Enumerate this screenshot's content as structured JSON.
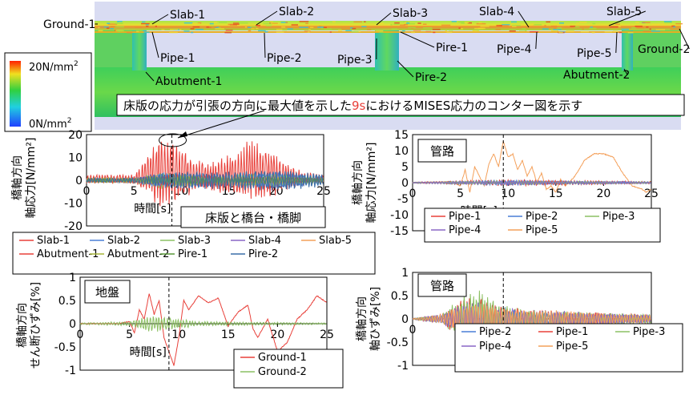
{
  "colors": {
    "contour_low": "#1e50ff",
    "contour_mid": "#22cc33",
    "contour_high": "#ff2a00",
    "slab": "#e8403a",
    "slab2": "#4a7fd6",
    "slab3": "#8cc063",
    "slab4": "#8a67c6",
    "slab5": "#f4a05a",
    "abut1": "#e8403a",
    "abut2": "#a7b63a",
    "pire1": "#5a9a3a",
    "pire2": "#3a6ea8",
    "pipe1": "#e8403a",
    "pipe2": "#4a7fd6",
    "pipe3": "#8cc063",
    "pipe4": "#8a67c6",
    "pipe5": "#f4a05a",
    "ground1": "#e8403a",
    "ground2": "#8cc063",
    "caption_accent": "#e8403a"
  },
  "contour": {
    "labels": [
      "Slab-1",
      "Slab-2",
      "Slab-3",
      "Slab-4",
      "Slab-5",
      "Ground-1",
      "Ground-2",
      "Pipe-1",
      "Pipe-2",
      "Pipe-3",
      "Pire-1",
      "Pipe-4",
      "Pipe-5",
      "Abutment-1",
      "Pire-2",
      "Abutment-2"
    ],
    "colorbar_top": "20N/mm",
    "colorbar_bottom": "0N/mm",
    "superscript": "2",
    "caption_pre": "床版の応力が引張の方向に最大値を示した",
    "caption_highlight": "9s",
    "caption_post": "におけるMISES応力のコンター図を示す"
  },
  "chart_data": [
    {
      "id": "slab",
      "type": "line",
      "xlabel": "時間[s]",
      "ylabel": "橋軸方向\n軸応力[N/mm²]",
      "xlim": [
        0,
        25
      ],
      "ylim": [
        -20,
        20
      ],
      "xticks": [
        0,
        5,
        10,
        15,
        20,
        25
      ],
      "yticks": [
        -20,
        -10,
        0,
        10,
        20
      ],
      "title_box": "床版と橋台・橋脚",
      "event_time": 9,
      "legend": [
        "Slab-1",
        "Slab-2",
        "Slab-3",
        "Slab-4",
        "Slab-5",
        "Abutment-1",
        "Abutment-2",
        "Pire-1",
        "Pire-2"
      ],
      "series": [
        {
          "name": "Slab-1",
          "color_key": "slab",
          "amp": 17,
          "env": "burst",
          "seed": 1,
          "envelope_points": [
            [
              5,
              2
            ],
            [
              6.5,
              10
            ],
            [
              8,
              17
            ],
            [
              9.5,
              16
            ],
            [
              11,
              8
            ],
            [
              13,
              6
            ],
            [
              15,
              9
            ],
            [
              17,
              14
            ],
            [
              19,
              13
            ],
            [
              21,
              6
            ],
            [
              23,
              3
            ],
            [
              25,
              2
            ]
          ]
        },
        {
          "name": "Slab-2",
          "color_key": "slab2",
          "amp": 4,
          "seed": 2,
          "envelope_points": [
            [
              5,
              1
            ],
            [
              8,
              4
            ],
            [
              11,
              3
            ],
            [
              15,
              3
            ],
            [
              20,
              4
            ],
            [
              25,
              2
            ]
          ]
        },
        {
          "name": "Slab-3",
          "color_key": "slab3",
          "amp": 3,
          "seed": 3,
          "envelope_points": [
            [
              5,
              1
            ],
            [
              8,
              4
            ],
            [
              12,
              2
            ],
            [
              18,
              3
            ],
            [
              25,
              2
            ]
          ]
        },
        {
          "name": "Slab-4",
          "color_key": "slab4",
          "amp": 2,
          "seed": 4,
          "envelope_points": [
            [
              5,
              1
            ],
            [
              9,
              3
            ],
            [
              15,
              2
            ],
            [
              25,
              1
            ]
          ]
        },
        {
          "name": "Slab-5",
          "color_key": "slab5",
          "amp": 3,
          "seed": 5,
          "envelope_points": [
            [
              5,
              1
            ],
            [
              9,
              3
            ],
            [
              15,
              2
            ],
            [
              25,
              1
            ]
          ]
        },
        {
          "name": "Abutment-1",
          "color_key": "abut1",
          "amp": 3,
          "seed": 6,
          "envelope_points": [
            [
              5,
              1
            ],
            [
              9,
              3
            ],
            [
              15,
              2
            ],
            [
              25,
              1
            ]
          ]
        },
        {
          "name": "Abutment-2",
          "color_key": "abut2",
          "amp": 2,
          "seed": 7,
          "envelope_points": [
            [
              5,
              1
            ],
            [
              9,
              2
            ],
            [
              25,
              1
            ]
          ]
        },
        {
          "name": "Pire-1",
          "color_key": "pire1",
          "amp": 2,
          "seed": 8,
          "envelope_points": [
            [
              5,
              1
            ],
            [
              9,
              2
            ],
            [
              25,
              1
            ]
          ]
        },
        {
          "name": "Pire-2",
          "color_key": "pire2",
          "amp": 3,
          "seed": 9,
          "envelope_points": [
            [
              5,
              1
            ],
            [
              9,
              4
            ],
            [
              15,
              4
            ],
            [
              20,
              5
            ],
            [
              25,
              3
            ]
          ]
        }
      ]
    },
    {
      "id": "pipe_stress",
      "type": "line",
      "xlabel": "時間[s]",
      "ylabel": "橋軸方向\n軸応力[N/mm²]",
      "xlim": [
        0,
        25
      ],
      "ylim": [
        -15,
        15
      ],
      "xticks": [
        0,
        5,
        10,
        15,
        20,
        25
      ],
      "yticks": [
        -15,
        -10,
        -5,
        0,
        5,
        10,
        15
      ],
      "title_box": "管路",
      "event_time": 9.5,
      "legend": [
        "Pipe-1",
        "Pipe-2",
        "Pipe-3",
        "Pipe-4",
        "Pipe-5"
      ],
      "series": [
        {
          "name": "Pipe-5",
          "color_key": "pipe5",
          "seed": 11,
          "points": [
            [
              0,
              0
            ],
            [
              4,
              0.3
            ],
            [
              5,
              -1
            ],
            [
              5.5,
              4
            ],
            [
              6,
              -3
            ],
            [
              6.5,
              5
            ],
            [
              7,
              2
            ],
            [
              7.5,
              -1
            ],
            [
              8,
              6
            ],
            [
              8.5,
              9
            ],
            [
              9,
              5
            ],
            [
              9.5,
              13
            ],
            [
              10,
              8
            ],
            [
              10.5,
              9
            ],
            [
              11,
              4
            ],
            [
              11.5,
              7
            ],
            [
              12,
              2
            ],
            [
              12.5,
              5
            ],
            [
              13,
              0
            ],
            [
              13.5,
              3
            ],
            [
              14,
              -2
            ],
            [
              14.5,
              -1
            ],
            [
              15,
              -3
            ],
            [
              15.5,
              1
            ],
            [
              16,
              -1
            ],
            [
              17,
              2
            ],
            [
              18,
              7
            ],
            [
              19,
              9
            ],
            [
              20,
              9
            ],
            [
              21,
              8
            ],
            [
              22,
              3
            ],
            [
              23,
              -1
            ],
            [
              24,
              -2
            ],
            [
              24.5,
              -3
            ],
            [
              25,
              -2
            ]
          ]
        },
        {
          "name": "Pipe-1",
          "color_key": "pipe1",
          "amp": 0.8,
          "seed": 12,
          "envelope_points": [
            [
              0,
              0.2
            ],
            [
              9,
              1
            ],
            [
              25,
              0.4
            ]
          ]
        },
        {
          "name": "Pipe-2",
          "color_key": "pipe2",
          "amp": 0.6,
          "seed": 13,
          "envelope_points": [
            [
              0,
              0.2
            ],
            [
              9,
              0.8
            ],
            [
              25,
              0.3
            ]
          ]
        },
        {
          "name": "Pipe-3",
          "color_key": "pipe3",
          "amp": 0.5,
          "seed": 14,
          "envelope_points": [
            [
              0,
              0.2
            ],
            [
              9,
              0.6
            ],
            [
              25,
              0.3
            ]
          ]
        },
        {
          "name": "Pipe-4",
          "color_key": "pipe4",
          "amp": 0.5,
          "seed": 15,
          "envelope_points": [
            [
              0,
              0.2
            ],
            [
              9,
              0.6
            ],
            [
              25,
              0.3
            ]
          ]
        }
      ]
    },
    {
      "id": "ground",
      "type": "line",
      "xlabel": "時間[s]",
      "ylabel": "橋軸方向\nせん断ひずみ[%]",
      "xlim": [
        0,
        25
      ],
      "ylim": [
        -1,
        1
      ],
      "xticks": [
        0,
        5,
        10,
        15,
        20,
        25
      ],
      "yticks": [
        -1,
        -0.5,
        0,
        0.5,
        1
      ],
      "title_box": "地盤",
      "event_time": 9,
      "legend": [
        "Ground-1",
        "Ground-2"
      ],
      "series": [
        {
          "name": "Ground-1",
          "color_key": "ground1",
          "points": [
            [
              0,
              0
            ],
            [
              4,
              0
            ],
            [
              5,
              0.05
            ],
            [
              5.5,
              -0.2
            ],
            [
              6,
              0.3
            ],
            [
              6.5,
              0.1
            ],
            [
              7,
              0.65
            ],
            [
              7.5,
              0.2
            ],
            [
              8,
              0.5
            ],
            [
              8.5,
              -0.3
            ],
            [
              9,
              -0.6
            ],
            [
              9.5,
              -0.9
            ],
            [
              10,
              -0.3
            ],
            [
              10.5,
              0.5
            ],
            [
              11,
              0.3
            ],
            [
              12,
              0.6
            ],
            [
              13,
              0.45
            ],
            [
              14,
              0.55
            ],
            [
              15,
              -0.05
            ],
            [
              16,
              0.25
            ],
            [
              17,
              0.4
            ],
            [
              17.5,
              -0.1
            ],
            [
              18,
              -0.3
            ],
            [
              19,
              0.1
            ],
            [
              20,
              -0.6
            ],
            [
              21,
              -0.4
            ],
            [
              22,
              0.1
            ],
            [
              23,
              0.3
            ],
            [
              24,
              0.6
            ],
            [
              25,
              0.45
            ]
          ]
        },
        {
          "name": "Ground-2",
          "color_key": "ground2",
          "amp": 0.12,
          "seed": 21,
          "envelope_points": [
            [
              0,
              0.02
            ],
            [
              5,
              0.05
            ],
            [
              7,
              0.2
            ],
            [
              9,
              0.15
            ],
            [
              12,
              0.05
            ],
            [
              25,
              0.02
            ]
          ]
        }
      ]
    },
    {
      "id": "pipe_strain",
      "type": "line",
      "xlabel": "時間[s]",
      "ylabel": "橋軸方向\n軸ひずみ[%]",
      "xlim": [
        0,
        25
      ],
      "ylim": [
        -1,
        1
      ],
      "xticks": [
        0,
        5,
        10,
        15,
        20,
        25
      ],
      "yticks": [
        -1,
        -0.5,
        0,
        0.5,
        1
      ],
      "title_box": "管路",
      "event_time": 9.5,
      "legend": [
        "Pipe-2",
        "Pipe-1",
        "Pipe-3",
        "Pipe-4",
        "Pipe-5"
      ],
      "series": [
        {
          "name": "Pipe-1",
          "color_key": "pipe1",
          "amp": 0.35,
          "seed": 31,
          "envelope_points": [
            [
              0,
              0.01
            ],
            [
              3,
              0.1
            ],
            [
              5,
              0.4
            ],
            [
              7,
              0.5
            ],
            [
              9,
              0.3
            ],
            [
              12,
              0.2
            ],
            [
              25,
              0.1
            ]
          ]
        },
        {
          "name": "Pipe-2",
          "color_key": "pipe2",
          "amp": 0.3,
          "seed": 32,
          "envelope_points": [
            [
              0,
              0.01
            ],
            [
              3,
              0.1
            ],
            [
              5,
              0.35
            ],
            [
              7,
              0.4
            ],
            [
              9,
              0.3
            ],
            [
              12,
              0.15
            ],
            [
              25,
              0.08
            ]
          ]
        },
        {
          "name": "Pipe-3",
          "color_key": "pipe3",
          "amp": 0.45,
          "seed": 33,
          "envelope_points": [
            [
              0,
              0.01
            ],
            [
              3,
              0.1
            ],
            [
              5,
              0.5
            ],
            [
              7,
              0.65
            ],
            [
              9,
              0.35
            ],
            [
              12,
              0.2
            ],
            [
              25,
              0.1
            ]
          ]
        },
        {
          "name": "Pipe-4",
          "color_key": "pipe4",
          "amp": 0.3,
          "seed": 34,
          "envelope_points": [
            [
              0,
              0.01
            ],
            [
              3,
              0.1
            ],
            [
              5,
              0.35
            ],
            [
              7,
              0.4
            ],
            [
              9,
              0.25
            ],
            [
              25,
              0.08
            ]
          ]
        },
        {
          "name": "Pipe-5",
          "color_key": "pipe5",
          "amp": 0.3,
          "seed": 35,
          "envelope_points": [
            [
              0,
              0.01
            ],
            [
              3,
              0.1
            ],
            [
              5,
              0.3
            ],
            [
              7,
              0.4
            ],
            [
              9,
              0.25
            ],
            [
              25,
              0.08
            ]
          ]
        }
      ]
    }
  ]
}
